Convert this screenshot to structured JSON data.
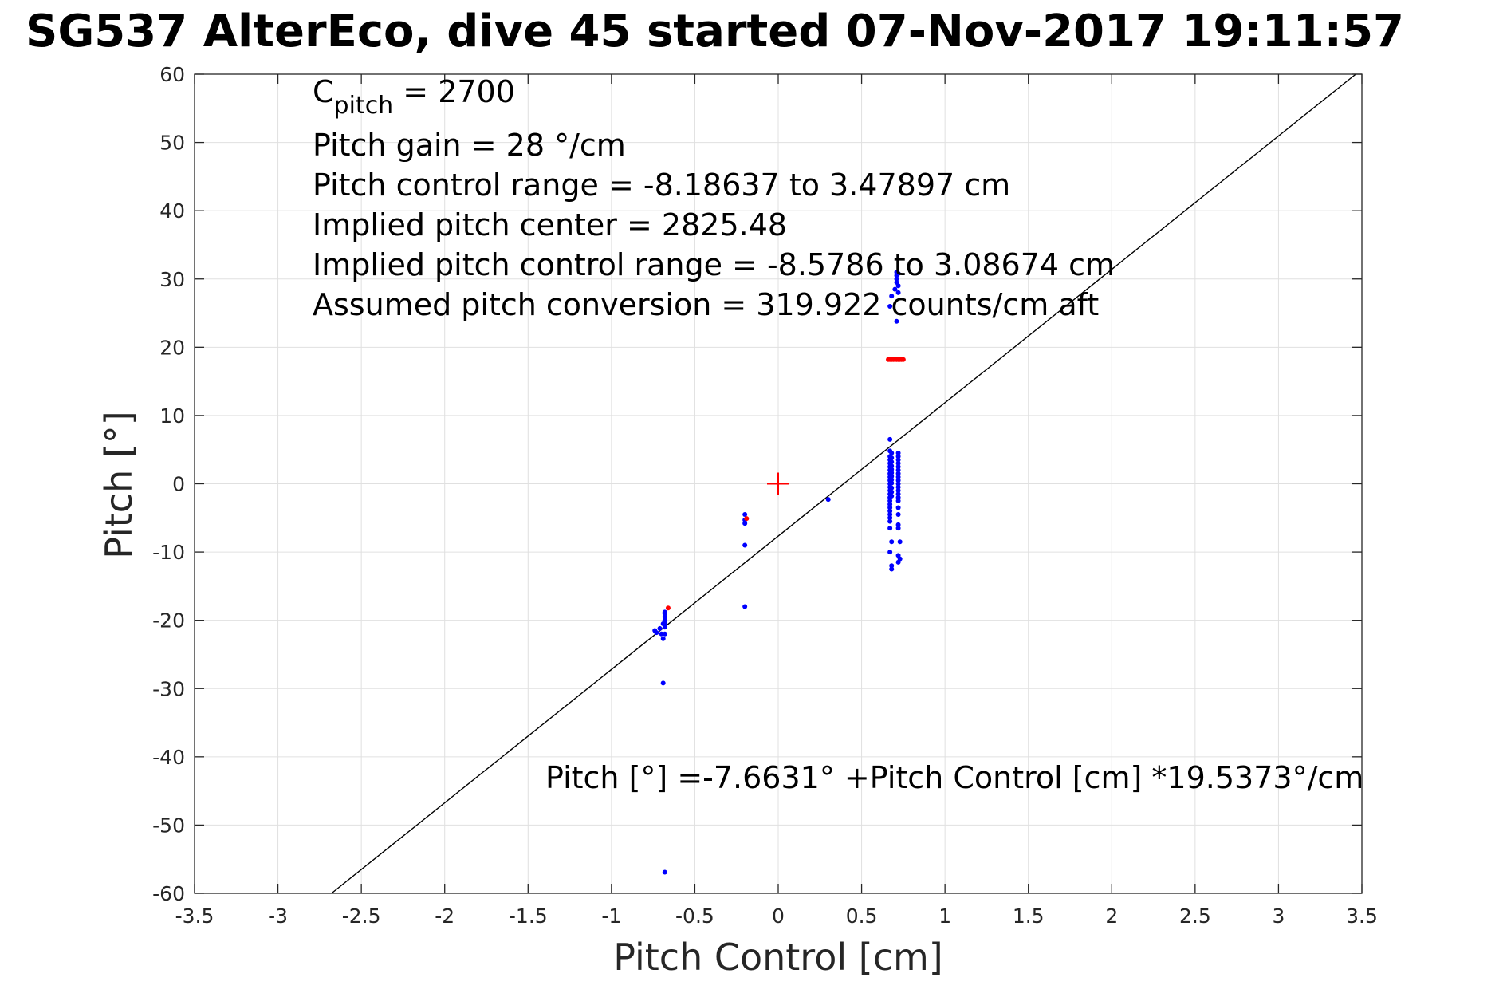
{
  "chart_data": {
    "type": "scatter",
    "title": "SG537 AlterEco, dive 45 started 07-Nov-2017 19:11:57",
    "xlabel": "Pitch Control [cm]",
    "ylabel": "Pitch [°]",
    "xlim": [
      -3.5,
      3.5
    ],
    "ylim": [
      -60,
      60
    ],
    "xticks": [
      -3.5,
      -3,
      -2.5,
      -2,
      -1.5,
      -1,
      -0.5,
      0,
      0.5,
      1,
      1.5,
      2,
      2.5,
      3,
      3.5
    ],
    "xtick_labels": [
      "-3.5",
      "-3",
      "-2.5",
      "-2",
      "-1.5",
      "-1",
      "-0.5",
      "0",
      "0.5",
      "1",
      "1.5",
      "2",
      "2.5",
      "3",
      "3.5"
    ],
    "yticks": [
      -60,
      -50,
      -40,
      -30,
      -20,
      -10,
      0,
      10,
      20,
      30,
      40,
      50,
      60
    ],
    "ytick_labels": [
      "-60",
      "-50",
      "-40",
      "-30",
      "-20",
      "-10",
      "0",
      "10",
      "20",
      "30",
      "40",
      "50",
      "60"
    ],
    "grid": true,
    "annotations": {
      "c_pitch_prefix": "C",
      "c_pitch_sub": "pitch",
      "c_pitch_value": " = 2700",
      "lines": [
        "Pitch gain = 28 °/cm",
        "Pitch control range = -8.18637 to 3.47897 cm",
        "Implied pitch center = 2825.48",
        "Implied pitch control range = -8.5786 to 3.08674 cm",
        "Assumed pitch conversion = 319.922 counts/cm aft"
      ],
      "fit_equation": "Pitch [°] =-7.6631° +Pitch Control [cm] *19.5373°/cm"
    },
    "fit_line": {
      "intercept": -7.6631,
      "slope": 19.5373
    },
    "center_marker": {
      "x": 0,
      "y": 0
    },
    "colors": {
      "kept": "#0000ff",
      "rejected": "#ff0000",
      "fit": "#000000",
      "center": "#ff0000",
      "grid": "#e0e0e0"
    },
    "series": [
      {
        "x": [
          -0.74,
          -0.73,
          -0.71,
          -0.7,
          -0.69,
          -0.68,
          -0.68,
          -0.68,
          -0.68,
          -0.68,
          -0.68,
          -0.68,
          -0.69,
          -0.68,
          -0.69,
          -0.2,
          -0.2,
          -0.2,
          -0.2,
          -0.2,
          0.3,
          0.67,
          0.67,
          0.67,
          0.67,
          0.67,
          0.67,
          0.67,
          0.67,
          0.67,
          0.67,
          0.67,
          0.67,
          0.67,
          0.67,
          0.67,
          0.67,
          0.67,
          0.67,
          0.67,
          0.67,
          0.68,
          0.68,
          0.68,
          0.68,
          0.68,
          0.68,
          0.68,
          0.68,
          0.68,
          0.68,
          0.68,
          0.68,
          0.67,
          0.67,
          0.67,
          0.68,
          0.67,
          0.68,
          0.68,
          0.72,
          0.72,
          0.72,
          0.72,
          0.72,
          0.72,
          0.72,
          0.72,
          0.72,
          0.72,
          0.72,
          0.72,
          0.72,
          0.72,
          0.72,
          0.72,
          0.72,
          0.72,
          0.73,
          0.72,
          0.73,
          0.72,
          0.72,
          0.67,
          0.68,
          0.7,
          0.71,
          0.71,
          0.71,
          0.72,
          0.72,
          0.72,
          0.71,
          0.71
        ],
        "y": [
          -21.5,
          -21.8,
          -21.2,
          -22.0,
          -20.5,
          -19.0,
          -19.5,
          -20.0,
          -20.3,
          -20.7,
          -21.0,
          -18.8,
          -22.7,
          -22.0,
          -29.2,
          -4.5,
          -5.3,
          -5.8,
          -9.0,
          -18.0,
          -2.3,
          6.5,
          4.8,
          4.0,
          3.5,
          3.0,
          2.5,
          2.0,
          1.5,
          1.0,
          0.5,
          0.0,
          -0.5,
          -1.0,
          -1.5,
          -2.0,
          -2.5,
          -3.0,
          -3.5,
          -4.0,
          -4.5,
          4.5,
          3.8,
          3.2,
          2.6,
          2.1,
          1.6,
          1.1,
          0.6,
          0.1,
          -0.6,
          -1.2,
          -1.8,
          -5.0,
          -5.5,
          -6.5,
          -8.5,
          -10.0,
          -12.0,
          -12.5,
          4.5,
          4.0,
          3.5,
          3.0,
          2.5,
          2.0,
          1.5,
          1.0,
          0.5,
          0.0,
          -0.5,
          -1.0,
          -1.5,
          -2.0,
          -2.5,
          -3.5,
          -4.5,
          -6.0,
          -8.5,
          -10.5,
          -11.0,
          -11.5,
          -6.5,
          26.0,
          27.5,
          28.5,
          29.5,
          30.0,
          30.5,
          29.0,
          28.0,
          30.8,
          31.0,
          23.8
        ],
        "color": "#0000ff"
      },
      {
        "x": [
          -0.66,
          -0.19,
          0.66,
          0.67,
          0.68,
          0.69,
          0.7,
          0.71,
          0.72,
          0.73,
          0.74,
          0.75
        ],
        "y": [
          -18.2,
          -5.1,
          18.2,
          18.2,
          18.2,
          18.2,
          18.2,
          18.2,
          18.2,
          18.2,
          18.2,
          18.2
        ],
        "color": "#ff0000"
      }
    ],
    "outlier": {
      "x": -0.68,
      "y": -56.9
    }
  }
}
